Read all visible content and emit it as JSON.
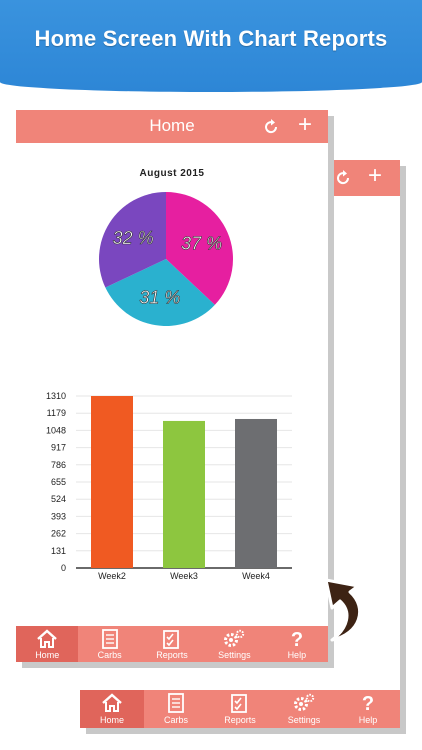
{
  "banner": {
    "title": "Home Screen With Chart Reports"
  },
  "screen": {
    "title": "Home"
  },
  "pie": {
    "title": "August  2015",
    "slices": [
      {
        "label": "37 %",
        "value": 37,
        "color": "#e61fa0"
      },
      {
        "label": "31 %",
        "value": 31,
        "color": "#2ab1cf"
      },
      {
        "label": "32 %",
        "value": 32,
        "color": "#7a47bf"
      }
    ]
  },
  "chart_data": {
    "type": "bar",
    "categories": [
      "Week2",
      "Week3",
      "Week4"
    ],
    "values": [
      1310,
      1120,
      1135
    ],
    "colors": [
      "#f05a22",
      "#8dc63f",
      "#6d6e71"
    ],
    "yticks": [
      0,
      131,
      262,
      393,
      524,
      655,
      786,
      917,
      1048,
      1179,
      1310
    ],
    "ylim": [
      0,
      1310
    ],
    "grid": true
  },
  "tabbar": {
    "items": [
      {
        "label": "Home",
        "icon": "home-icon"
      },
      {
        "label": "Carbs",
        "icon": "carbs-icon"
      },
      {
        "label": "Reports",
        "icon": "reports-icon"
      },
      {
        "label": "Settings",
        "icon": "settings-icon"
      },
      {
        "label": "Help",
        "icon": "help-icon"
      }
    ],
    "active": "Home"
  },
  "colors": {
    "banner": "#2d86d6",
    "navbar": "#f08479",
    "active_tab": "#e0655b",
    "arrow": "#3d2314"
  }
}
